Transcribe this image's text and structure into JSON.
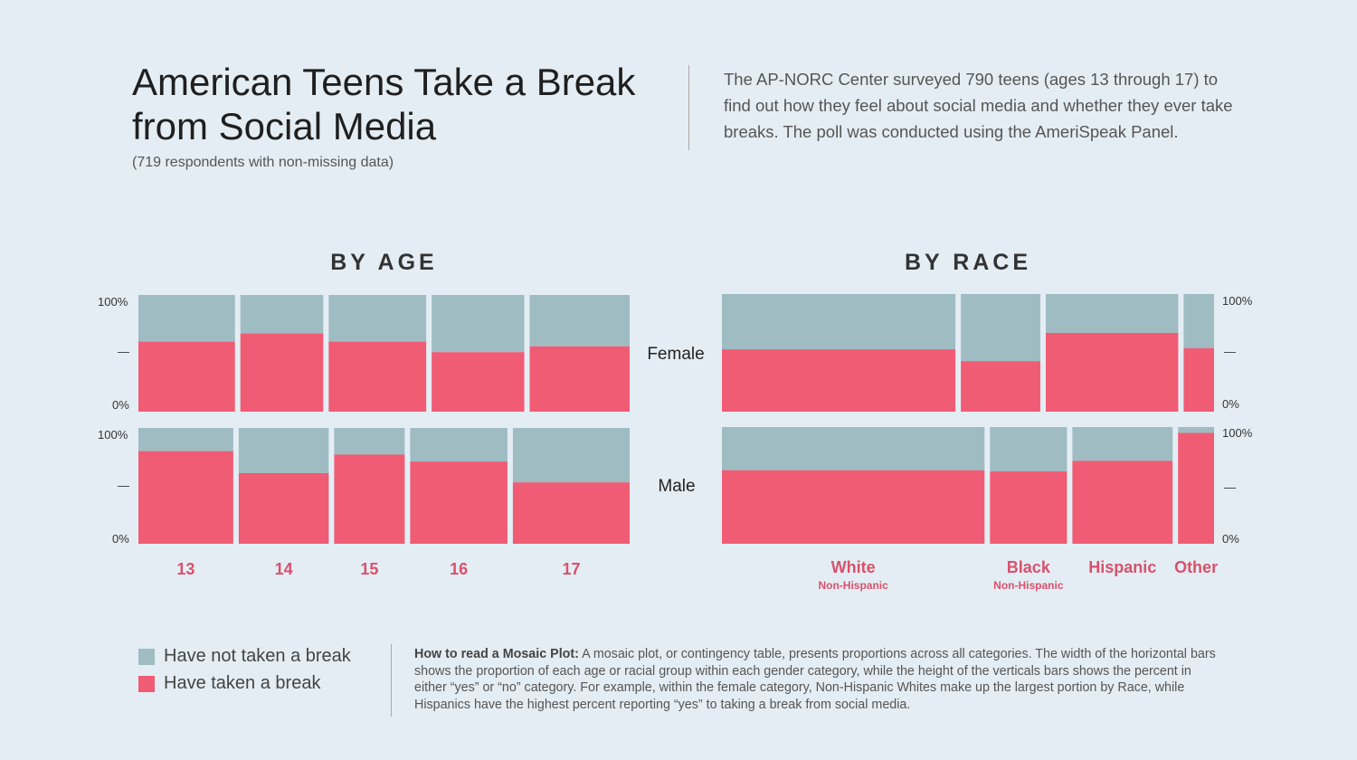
{
  "header": {
    "title": "American Teens Take a Break from Social Media",
    "subtitle": "(719 respondents with non-missing data)",
    "intro": "The AP-NORC Center surveyed 790 teens (ages 13 through 17) to find out how they feel about social media and whether they ever take breaks. The poll was conducted using the AmeriSpeak Panel."
  },
  "colors": {
    "not_taken": "#9fbcc3",
    "taken": "#f05c74",
    "category_label": "#d9516b",
    "background": "#e4edf4"
  },
  "axis": {
    "top": "100%",
    "mid": "—",
    "bottom": "0%"
  },
  "genders": {
    "female": "Female",
    "male": "Male"
  },
  "legend": [
    {
      "label": "Have not taken a break",
      "color": "#9fbcc3"
    },
    {
      "label": "Have taken a break",
      "color": "#f05c74"
    }
  ],
  "howto": {
    "lead": "How to read a Mosaic Plot:",
    "body": " A mosaic plot, or contingency table, presents proportions across all categories. The width of the horizontal bars shows the proportion of each age or racial group within each gender category, while the height of the verticals bars shows the percent in either “yes” or “no” category. For example, within the female category, Non-Hispanic Whites make up the largest portion by Race, while Hispanics have the highest percent reporting “yes” to taking a break from social media."
  },
  "chart_data": [
    {
      "type": "mosaic",
      "title": "BY AGE",
      "categories": [
        {
          "label": "13",
          "sublabel": ""
        },
        {
          "label": "14",
          "sublabel": ""
        },
        {
          "label": "15",
          "sublabel": ""
        },
        {
          "label": "16",
          "sublabel": ""
        },
        {
          "label": "17",
          "sublabel": ""
        }
      ],
      "series_names": [
        "Have not taken a break",
        "Have taken a break"
      ],
      "groups": [
        {
          "name": "Female",
          "widths": [
            0.198,
            0.17,
            0.2,
            0.19,
            0.205
          ],
          "taken_pct": [
            60,
            67,
            60,
            51,
            56
          ]
        },
        {
          "name": "Male",
          "widths": [
            0.195,
            0.185,
            0.145,
            0.2,
            0.24
          ],
          "taken_pct": [
            80,
            61,
            77,
            71,
            53
          ]
        }
      ],
      "ylim": [
        0,
        100
      ]
    },
    {
      "type": "mosaic",
      "title": "BY RACE",
      "categories": [
        {
          "label": "White",
          "sublabel": "Non-Hispanic"
        },
        {
          "label": "Black",
          "sublabel": "Non-Hispanic"
        },
        {
          "label": "Hispanic",
          "sublabel": ""
        },
        {
          "label": "Other",
          "sublabel": ""
        }
      ],
      "series_names": [
        "Have not taken a break",
        "Have taken a break"
      ],
      "groups": [
        {
          "name": "Female",
          "widths": [
            0.476,
            0.162,
            0.27,
            0.062
          ],
          "taken_pct": [
            53,
            43,
            67,
            54
          ]
        },
        {
          "name": "Male",
          "widths": [
            0.532,
            0.156,
            0.203,
            0.073
          ],
          "taken_pct": [
            63,
            62,
            71,
            95
          ]
        }
      ],
      "ylim": [
        0,
        100
      ]
    }
  ]
}
